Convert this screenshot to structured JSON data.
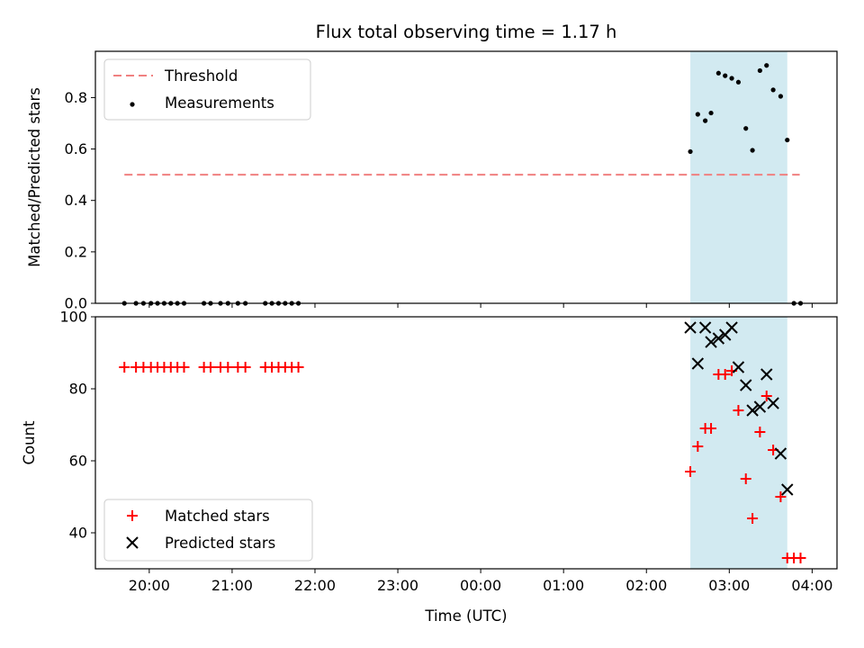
{
  "chart_data": {
    "title": "Flux total observing time = 1.17 h",
    "xlabel": "Time (UTC)",
    "x_tick_labels": [
      "20:00",
      "21:00",
      "22:00",
      "23:00",
      "00:00",
      "01:00",
      "02:00",
      "03:00",
      "04:00"
    ],
    "x_ticks_hours": [
      20,
      21,
      22,
      23,
      24,
      25,
      26,
      27,
      28
    ],
    "xlim_hours": [
      19.35,
      28.3
    ],
    "shaded_span_hours": [
      26.53,
      27.7
    ],
    "shade_color": "#add8e6",
    "panels": [
      {
        "type": "scatter",
        "ylabel": "Matched/Predicted stars",
        "ylim": [
          0,
          0.98
        ],
        "y_ticks": [
          0.0,
          0.2,
          0.4,
          0.6,
          0.8
        ],
        "y_tick_labels": [
          "0.0",
          "0.2",
          "0.4",
          "0.6",
          "0.8"
        ],
        "legend": {
          "placement": "upper-left",
          "entries": [
            "Threshold",
            "Measurements"
          ]
        },
        "threshold": {
          "name": "Threshold",
          "value": 0.5,
          "x_range_hours": [
            19.7,
            27.85
          ],
          "color": "#f08080"
        },
        "measurements": {
          "name": "Measurements",
          "color": "#000000",
          "points": [
            [
              19.7,
              0
            ],
            [
              19.84,
              0
            ],
            [
              19.93,
              0
            ],
            [
              20.02,
              0
            ],
            [
              20.1,
              0
            ],
            [
              20.18,
              0
            ],
            [
              20.26,
              0
            ],
            [
              20.34,
              0
            ],
            [
              20.42,
              0
            ],
            [
              20.66,
              0
            ],
            [
              20.74,
              0
            ],
            [
              20.86,
              0
            ],
            [
              20.95,
              0
            ],
            [
              21.07,
              0
            ],
            [
              21.16,
              0
            ],
            [
              21.4,
              0
            ],
            [
              21.48,
              0
            ],
            [
              21.56,
              0
            ],
            [
              21.64,
              0
            ],
            [
              21.72,
              0
            ],
            [
              21.8,
              0
            ],
            [
              26.53,
              0.59
            ],
            [
              26.62,
              0.735
            ],
            [
              26.71,
              0.71
            ],
            [
              26.78,
              0.74
            ],
            [
              26.87,
              0.895
            ],
            [
              26.95,
              0.885
            ],
            [
              27.03,
              0.875
            ],
            [
              27.11,
              0.86
            ],
            [
              27.2,
              0.68
            ],
            [
              27.28,
              0.595
            ],
            [
              27.37,
              0.905
            ],
            [
              27.45,
              0.925
            ],
            [
              27.53,
              0.83
            ],
            [
              27.62,
              0.805
            ],
            [
              27.7,
              0.635
            ],
            [
              27.78,
              0
            ],
            [
              27.86,
              0
            ]
          ]
        }
      },
      {
        "type": "scatter",
        "ylabel": "Count",
        "ylim": [
          30,
          100
        ],
        "y_ticks": [
          40,
          60,
          80,
          100
        ],
        "y_tick_labels": [
          "40",
          "60",
          "80",
          "100"
        ],
        "legend": {
          "placement": "lower-left",
          "entries": [
            "Matched stars",
            "Predicted stars"
          ]
        },
        "series": [
          {
            "name": "Matched stars",
            "marker": "plus",
            "color": "#ff0000",
            "points": [
              [
                19.7,
                86
              ],
              [
                19.84,
                86
              ],
              [
                19.93,
                86
              ],
              [
                20.02,
                86
              ],
              [
                20.1,
                86
              ],
              [
                20.18,
                86
              ],
              [
                20.26,
                86
              ],
              [
                20.34,
                86
              ],
              [
                20.42,
                86
              ],
              [
                20.66,
                86
              ],
              [
                20.74,
                86
              ],
              [
                20.86,
                86
              ],
              [
                20.95,
                86
              ],
              [
                21.07,
                86
              ],
              [
                21.16,
                86
              ],
              [
                21.4,
                86
              ],
              [
                21.48,
                86
              ],
              [
                21.56,
                86
              ],
              [
                21.64,
                86
              ],
              [
                21.72,
                86
              ],
              [
                21.8,
                86
              ],
              [
                26.53,
                57
              ],
              [
                26.62,
                64
              ],
              [
                26.71,
                69
              ],
              [
                26.78,
                69
              ],
              [
                26.87,
                84
              ],
              [
                26.95,
                84
              ],
              [
                27.03,
                85
              ],
              [
                27.11,
                74
              ],
              [
                27.2,
                55
              ],
              [
                27.28,
                44
              ],
              [
                27.37,
                68
              ],
              [
                27.45,
                78
              ],
              [
                27.53,
                63
              ],
              [
                27.62,
                50
              ],
              [
                27.7,
                33
              ],
              [
                27.78,
                33
              ],
              [
                27.86,
                33
              ]
            ]
          },
          {
            "name": "Predicted stars",
            "marker": "x",
            "color": "#000000",
            "points": [
              [
                26.53,
                97
              ],
              [
                26.62,
                87
              ],
              [
                26.71,
                97
              ],
              [
                26.78,
                93
              ],
              [
                26.87,
                94
              ],
              [
                26.95,
                95
              ],
              [
                27.03,
                97
              ],
              [
                27.11,
                86
              ],
              [
                27.2,
                81
              ],
              [
                27.28,
                74
              ],
              [
                27.37,
                75
              ],
              [
                27.45,
                84
              ],
              [
                27.53,
                76
              ],
              [
                27.62,
                62
              ],
              [
                27.7,
                52
              ]
            ]
          }
        ]
      }
    ]
  }
}
